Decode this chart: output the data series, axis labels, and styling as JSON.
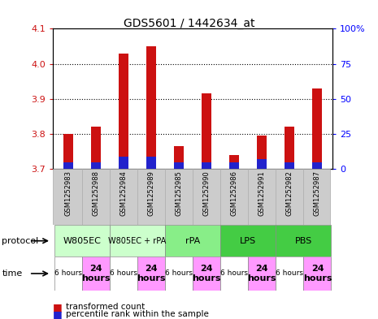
{
  "title": "GDS5601 / 1442634_at",
  "samples": [
    "GSM1252983",
    "GSM1252988",
    "GSM1252984",
    "GSM1252989",
    "GSM1252985",
    "GSM1252990",
    "GSM1252986",
    "GSM1252991",
    "GSM1252982",
    "GSM1252987"
  ],
  "transformed_count": [
    3.8,
    3.82,
    4.03,
    4.05,
    3.765,
    3.915,
    3.74,
    3.795,
    3.82,
    3.93
  ],
  "percentile_rank": [
    5,
    5,
    9,
    9,
    5,
    5,
    5,
    7,
    5,
    5
  ],
  "bar_base": 3.7,
  "ylim_left": [
    3.7,
    4.1
  ],
  "ylim_right": [
    0,
    100
  ],
  "yticks_left": [
    3.7,
    3.8,
    3.9,
    4.0,
    4.1
  ],
  "yticks_right": [
    0,
    25,
    50,
    75,
    100
  ],
  "protocols": [
    {
      "label": "W805EC",
      "start": 0,
      "end": 2,
      "color": "#ccffcc"
    },
    {
      "label": "W805EC + rPA",
      "start": 2,
      "end": 4,
      "color": "#ccffcc"
    },
    {
      "label": "rPA",
      "start": 4,
      "end": 6,
      "color": "#88ee88"
    },
    {
      "label": "LPS",
      "start": 6,
      "end": 8,
      "color": "#44cc44"
    },
    {
      "label": "PBS",
      "start": 8,
      "end": 10,
      "color": "#44cc44"
    }
  ],
  "times": [
    "6 hours",
    "24\nhours",
    "6 hours",
    "24\nhours",
    "6 hours",
    "24\nhours",
    "6 hours",
    "24\nhours",
    "6 hours",
    "24\nhours"
  ],
  "red_color": "#cc1111",
  "blue_color": "#2222cc",
  "bar_width": 0.35,
  "sample_box_color": "#cccccc",
  "sample_box_edge": "#aaaaaa"
}
